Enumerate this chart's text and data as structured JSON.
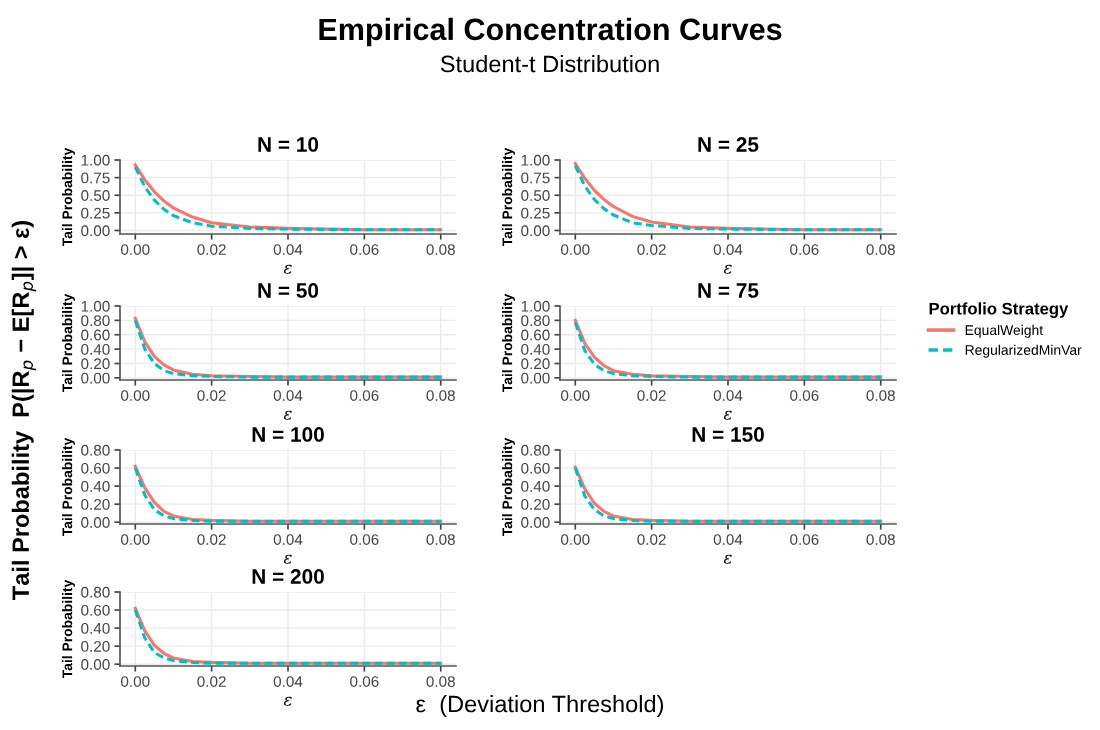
{
  "chart_data": [
    {
      "type": "other",
      "title": "Empirical Concentration Curves",
      "subtitle": "Student-t Distribution",
      "xlabel": "ε  (Deviation Threshold)",
      "ylabel": "Tail Probability  P(|R$_{p}$ − E[R$_{p}$]| > ε)"
    },
    {
      "type": "line",
      "title": "N = 10",
      "legend": "right",
      "legend_title": "Portfolio Strategy",
      "grid": true,
      "xlabel": "ε",
      "ylabel": "Tail Probability",
      "x": [
        0,
        0.0025,
        0.005,
        0.0075,
        0.01,
        0.015,
        0.02,
        0.03,
        0.04,
        0.06,
        0.08
      ],
      "xlim": [
        -0.004,
        0.084
      ],
      "xticks": [
        {
          "value": 0,
          "label": "0.00"
        },
        {
          "value": 0.02,
          "label": "0.02"
        },
        {
          "value": 0.04,
          "label": "0.04"
        },
        {
          "value": 0.06,
          "label": "0.06"
        },
        {
          "value": 0.08,
          "label": "0.08"
        }
      ],
      "ylim": [
        -0.05,
        1.0
      ],
      "yticks": [
        {
          "value": 0,
          "label": "0.00"
        },
        {
          "value": 0.25,
          "label": "0.25"
        },
        {
          "value": 0.5,
          "label": "0.50"
        },
        {
          "value": 0.75,
          "label": "0.75"
        },
        {
          "value": 1.0,
          "label": "1.00"
        }
      ],
      "series": [
        {
          "name": "EqualWeight",
          "color": "#f8766d",
          "line_style": "solid",
          "values": [
            0.93,
            0.72,
            0.55,
            0.42,
            0.32,
            0.19,
            0.11,
            0.05,
            0.03,
            0.01,
            0.01
          ]
        },
        {
          "name": "RegularizedMinVar",
          "color": "#00bfc4",
          "line_style": "dashed",
          "values": [
            0.9,
            0.62,
            0.43,
            0.3,
            0.21,
            0.11,
            0.06,
            0.03,
            0.02,
            0.01,
            0.01
          ]
        }
      ]
    },
    {
      "type": "line",
      "title": "N = 25",
      "grid": true,
      "xlabel": "ε",
      "ylabel": "Tail Probability",
      "x": [
        0,
        0.0025,
        0.005,
        0.0075,
        0.01,
        0.015,
        0.02,
        0.03,
        0.04,
        0.06,
        0.08
      ],
      "xlim": [
        -0.004,
        0.084
      ],
      "xticks": [
        {
          "value": 0,
          "label": "0.00"
        },
        {
          "value": 0.02,
          "label": "0.02"
        },
        {
          "value": 0.04,
          "label": "0.04"
        },
        {
          "value": 0.06,
          "label": "0.06"
        },
        {
          "value": 0.08,
          "label": "0.08"
        }
      ],
      "ylim": [
        -0.05,
        1.0
      ],
      "yticks": [
        {
          "value": 0,
          "label": "0.00"
        },
        {
          "value": 0.25,
          "label": "0.25"
        },
        {
          "value": 0.5,
          "label": "0.50"
        },
        {
          "value": 0.75,
          "label": "0.75"
        },
        {
          "value": 1.0,
          "label": "1.00"
        }
      ],
      "series": [
        {
          "color": "#f8766d",
          "line_style": "solid",
          "values": [
            0.95,
            0.74,
            0.57,
            0.44,
            0.34,
            0.2,
            0.12,
            0.05,
            0.03,
            0.01,
            0.01
          ]
        },
        {
          "color": "#00bfc4",
          "line_style": "dashed",
          "values": [
            0.92,
            0.63,
            0.44,
            0.31,
            0.22,
            0.11,
            0.07,
            0.03,
            0.02,
            0.01,
            0.01
          ]
        }
      ]
    },
    {
      "type": "line",
      "title": "N = 50",
      "grid": true,
      "xlabel": "ε",
      "ylabel": "Tail Probability",
      "x": [
        0,
        0.0025,
        0.005,
        0.0075,
        0.01,
        0.015,
        0.02,
        0.03,
        0.04,
        0.06,
        0.08
      ],
      "xlim": [
        -0.004,
        0.084
      ],
      "xticks": [
        {
          "value": 0,
          "label": "0.00"
        },
        {
          "value": 0.02,
          "label": "0.02"
        },
        {
          "value": 0.04,
          "label": "0.04"
        },
        {
          "value": 0.06,
          "label": "0.06"
        },
        {
          "value": 0.08,
          "label": "0.08"
        }
      ],
      "ylim": [
        -0.03,
        1.0
      ],
      "yticks": [
        {
          "value": 0,
          "label": "0.00"
        },
        {
          "value": 0.2,
          "label": "0.20"
        },
        {
          "value": 0.4,
          "label": "0.40"
        },
        {
          "value": 0.6,
          "label": "0.60"
        },
        {
          "value": 0.8,
          "label": "0.80"
        },
        {
          "value": 1.0,
          "label": "1.00"
        }
      ],
      "series": [
        {
          "color": "#f8766d",
          "line_style": "solid",
          "values": [
            0.83,
            0.5,
            0.3,
            0.18,
            0.11,
            0.05,
            0.03,
            0.02,
            0.01,
            0.01,
            0.01
          ]
        },
        {
          "color": "#00bfc4",
          "line_style": "dashed",
          "values": [
            0.8,
            0.4,
            0.2,
            0.1,
            0.06,
            0.03,
            0.02,
            0.01,
            0.01,
            0.01,
            0.01
          ]
        }
      ]
    },
    {
      "type": "line",
      "title": "N = 75",
      "grid": true,
      "xlabel": "ε",
      "ylabel": "Tail Probability",
      "x": [
        0,
        0.0025,
        0.005,
        0.0075,
        0.01,
        0.015,
        0.02,
        0.03,
        0.04,
        0.06,
        0.08
      ],
      "xlim": [
        -0.004,
        0.084
      ],
      "xticks": [
        {
          "value": 0,
          "label": "0.00"
        },
        {
          "value": 0.02,
          "label": "0.02"
        },
        {
          "value": 0.04,
          "label": "0.04"
        },
        {
          "value": 0.06,
          "label": "0.06"
        },
        {
          "value": 0.08,
          "label": "0.08"
        }
      ],
      "ylim": [
        -0.03,
        1.0
      ],
      "yticks": [
        {
          "value": 0,
          "label": "0.00"
        },
        {
          "value": 0.2,
          "label": "0.20"
        },
        {
          "value": 0.4,
          "label": "0.40"
        },
        {
          "value": 0.6,
          "label": "0.60"
        },
        {
          "value": 0.8,
          "label": "0.80"
        },
        {
          "value": 1.0,
          "label": "1.00"
        }
      ],
      "series": [
        {
          "color": "#f8766d",
          "line_style": "solid",
          "values": [
            0.8,
            0.48,
            0.29,
            0.17,
            0.1,
            0.05,
            0.03,
            0.02,
            0.01,
            0.01,
            0.01
          ]
        },
        {
          "color": "#00bfc4",
          "line_style": "dashed",
          "values": [
            0.77,
            0.38,
            0.19,
            0.1,
            0.06,
            0.03,
            0.02,
            0.01,
            0.01,
            0.01,
            0.01
          ]
        }
      ]
    },
    {
      "type": "line",
      "title": "N = 100",
      "grid": true,
      "xlabel": "ε",
      "ylabel": "Tail Probability",
      "x": [
        0,
        0.0025,
        0.005,
        0.0075,
        0.01,
        0.015,
        0.02,
        0.03,
        0.04,
        0.06,
        0.08
      ],
      "xlim": [
        -0.004,
        0.084
      ],
      "xticks": [
        {
          "value": 0,
          "label": "0.00"
        },
        {
          "value": 0.02,
          "label": "0.02"
        },
        {
          "value": 0.04,
          "label": "0.04"
        },
        {
          "value": 0.06,
          "label": "0.06"
        },
        {
          "value": 0.08,
          "label": "0.08"
        }
      ],
      "ylim": [
        -0.02,
        0.8
      ],
      "yticks": [
        {
          "value": 0,
          "label": "0.00"
        },
        {
          "value": 0.2,
          "label": "0.20"
        },
        {
          "value": 0.4,
          "label": "0.40"
        },
        {
          "value": 0.6,
          "label": "0.60"
        },
        {
          "value": 0.8,
          "label": "0.80"
        }
      ],
      "series": [
        {
          "color": "#f8766d",
          "line_style": "solid",
          "values": [
            0.62,
            0.38,
            0.22,
            0.12,
            0.07,
            0.03,
            0.02,
            0.01,
            0.01,
            0.01,
            0.01
          ]
        },
        {
          "color": "#00bfc4",
          "line_style": "dashed",
          "values": [
            0.6,
            0.3,
            0.14,
            0.07,
            0.04,
            0.02,
            0.01,
            0.01,
            0.01,
            0.01,
            0.01
          ]
        }
      ]
    },
    {
      "type": "line",
      "title": "N = 150",
      "grid": true,
      "xlabel": "ε",
      "ylabel": "Tail Probability",
      "x": [
        0,
        0.0025,
        0.005,
        0.0075,
        0.01,
        0.015,
        0.02,
        0.03,
        0.04,
        0.06,
        0.08
      ],
      "xlim": [
        -0.004,
        0.084
      ],
      "xticks": [
        {
          "value": 0,
          "label": "0.00"
        },
        {
          "value": 0.02,
          "label": "0.02"
        },
        {
          "value": 0.04,
          "label": "0.04"
        },
        {
          "value": 0.06,
          "label": "0.06"
        },
        {
          "value": 0.08,
          "label": "0.08"
        }
      ],
      "ylim": [
        -0.02,
        0.8
      ],
      "yticks": [
        {
          "value": 0,
          "label": "0.00"
        },
        {
          "value": 0.2,
          "label": "0.20"
        },
        {
          "value": 0.4,
          "label": "0.40"
        },
        {
          "value": 0.6,
          "label": "0.60"
        },
        {
          "value": 0.8,
          "label": "0.80"
        }
      ],
      "series": [
        {
          "color": "#f8766d",
          "line_style": "solid",
          "values": [
            0.61,
            0.37,
            0.21,
            0.12,
            0.07,
            0.03,
            0.02,
            0.01,
            0.01,
            0.01,
            0.01
          ]
        },
        {
          "color": "#00bfc4",
          "line_style": "dashed",
          "values": [
            0.6,
            0.29,
            0.14,
            0.07,
            0.04,
            0.02,
            0.01,
            0.01,
            0.01,
            0.01,
            0.01
          ]
        }
      ]
    },
    {
      "type": "line",
      "title": "N = 200",
      "grid": true,
      "xlabel": "ε",
      "ylabel": "Tail Probability",
      "x": [
        0,
        0.0025,
        0.005,
        0.0075,
        0.01,
        0.015,
        0.02,
        0.03,
        0.04,
        0.06,
        0.08
      ],
      "xlim": [
        -0.004,
        0.084
      ],
      "xticks": [
        {
          "value": 0,
          "label": "0.00"
        },
        {
          "value": 0.02,
          "label": "0.02"
        },
        {
          "value": 0.04,
          "label": "0.04"
        },
        {
          "value": 0.06,
          "label": "0.06"
        },
        {
          "value": 0.08,
          "label": "0.08"
        }
      ],
      "ylim": [
        -0.02,
        0.8
      ],
      "yticks": [
        {
          "value": 0,
          "label": "0.00"
        },
        {
          "value": 0.2,
          "label": "0.20"
        },
        {
          "value": 0.4,
          "label": "0.40"
        },
        {
          "value": 0.6,
          "label": "0.60"
        },
        {
          "value": 0.8,
          "label": "0.80"
        }
      ],
      "series": [
        {
          "color": "#f8766d",
          "line_style": "solid",
          "values": [
            0.62,
            0.37,
            0.21,
            0.12,
            0.07,
            0.03,
            0.02,
            0.01,
            0.01,
            0.01,
            0.01
          ]
        },
        {
          "color": "#00bfc4",
          "line_style": "dashed",
          "values": [
            0.6,
            0.29,
            0.13,
            0.07,
            0.04,
            0.02,
            0.01,
            0.01,
            0.01,
            0.01,
            0.01
          ]
        }
      ]
    }
  ]
}
